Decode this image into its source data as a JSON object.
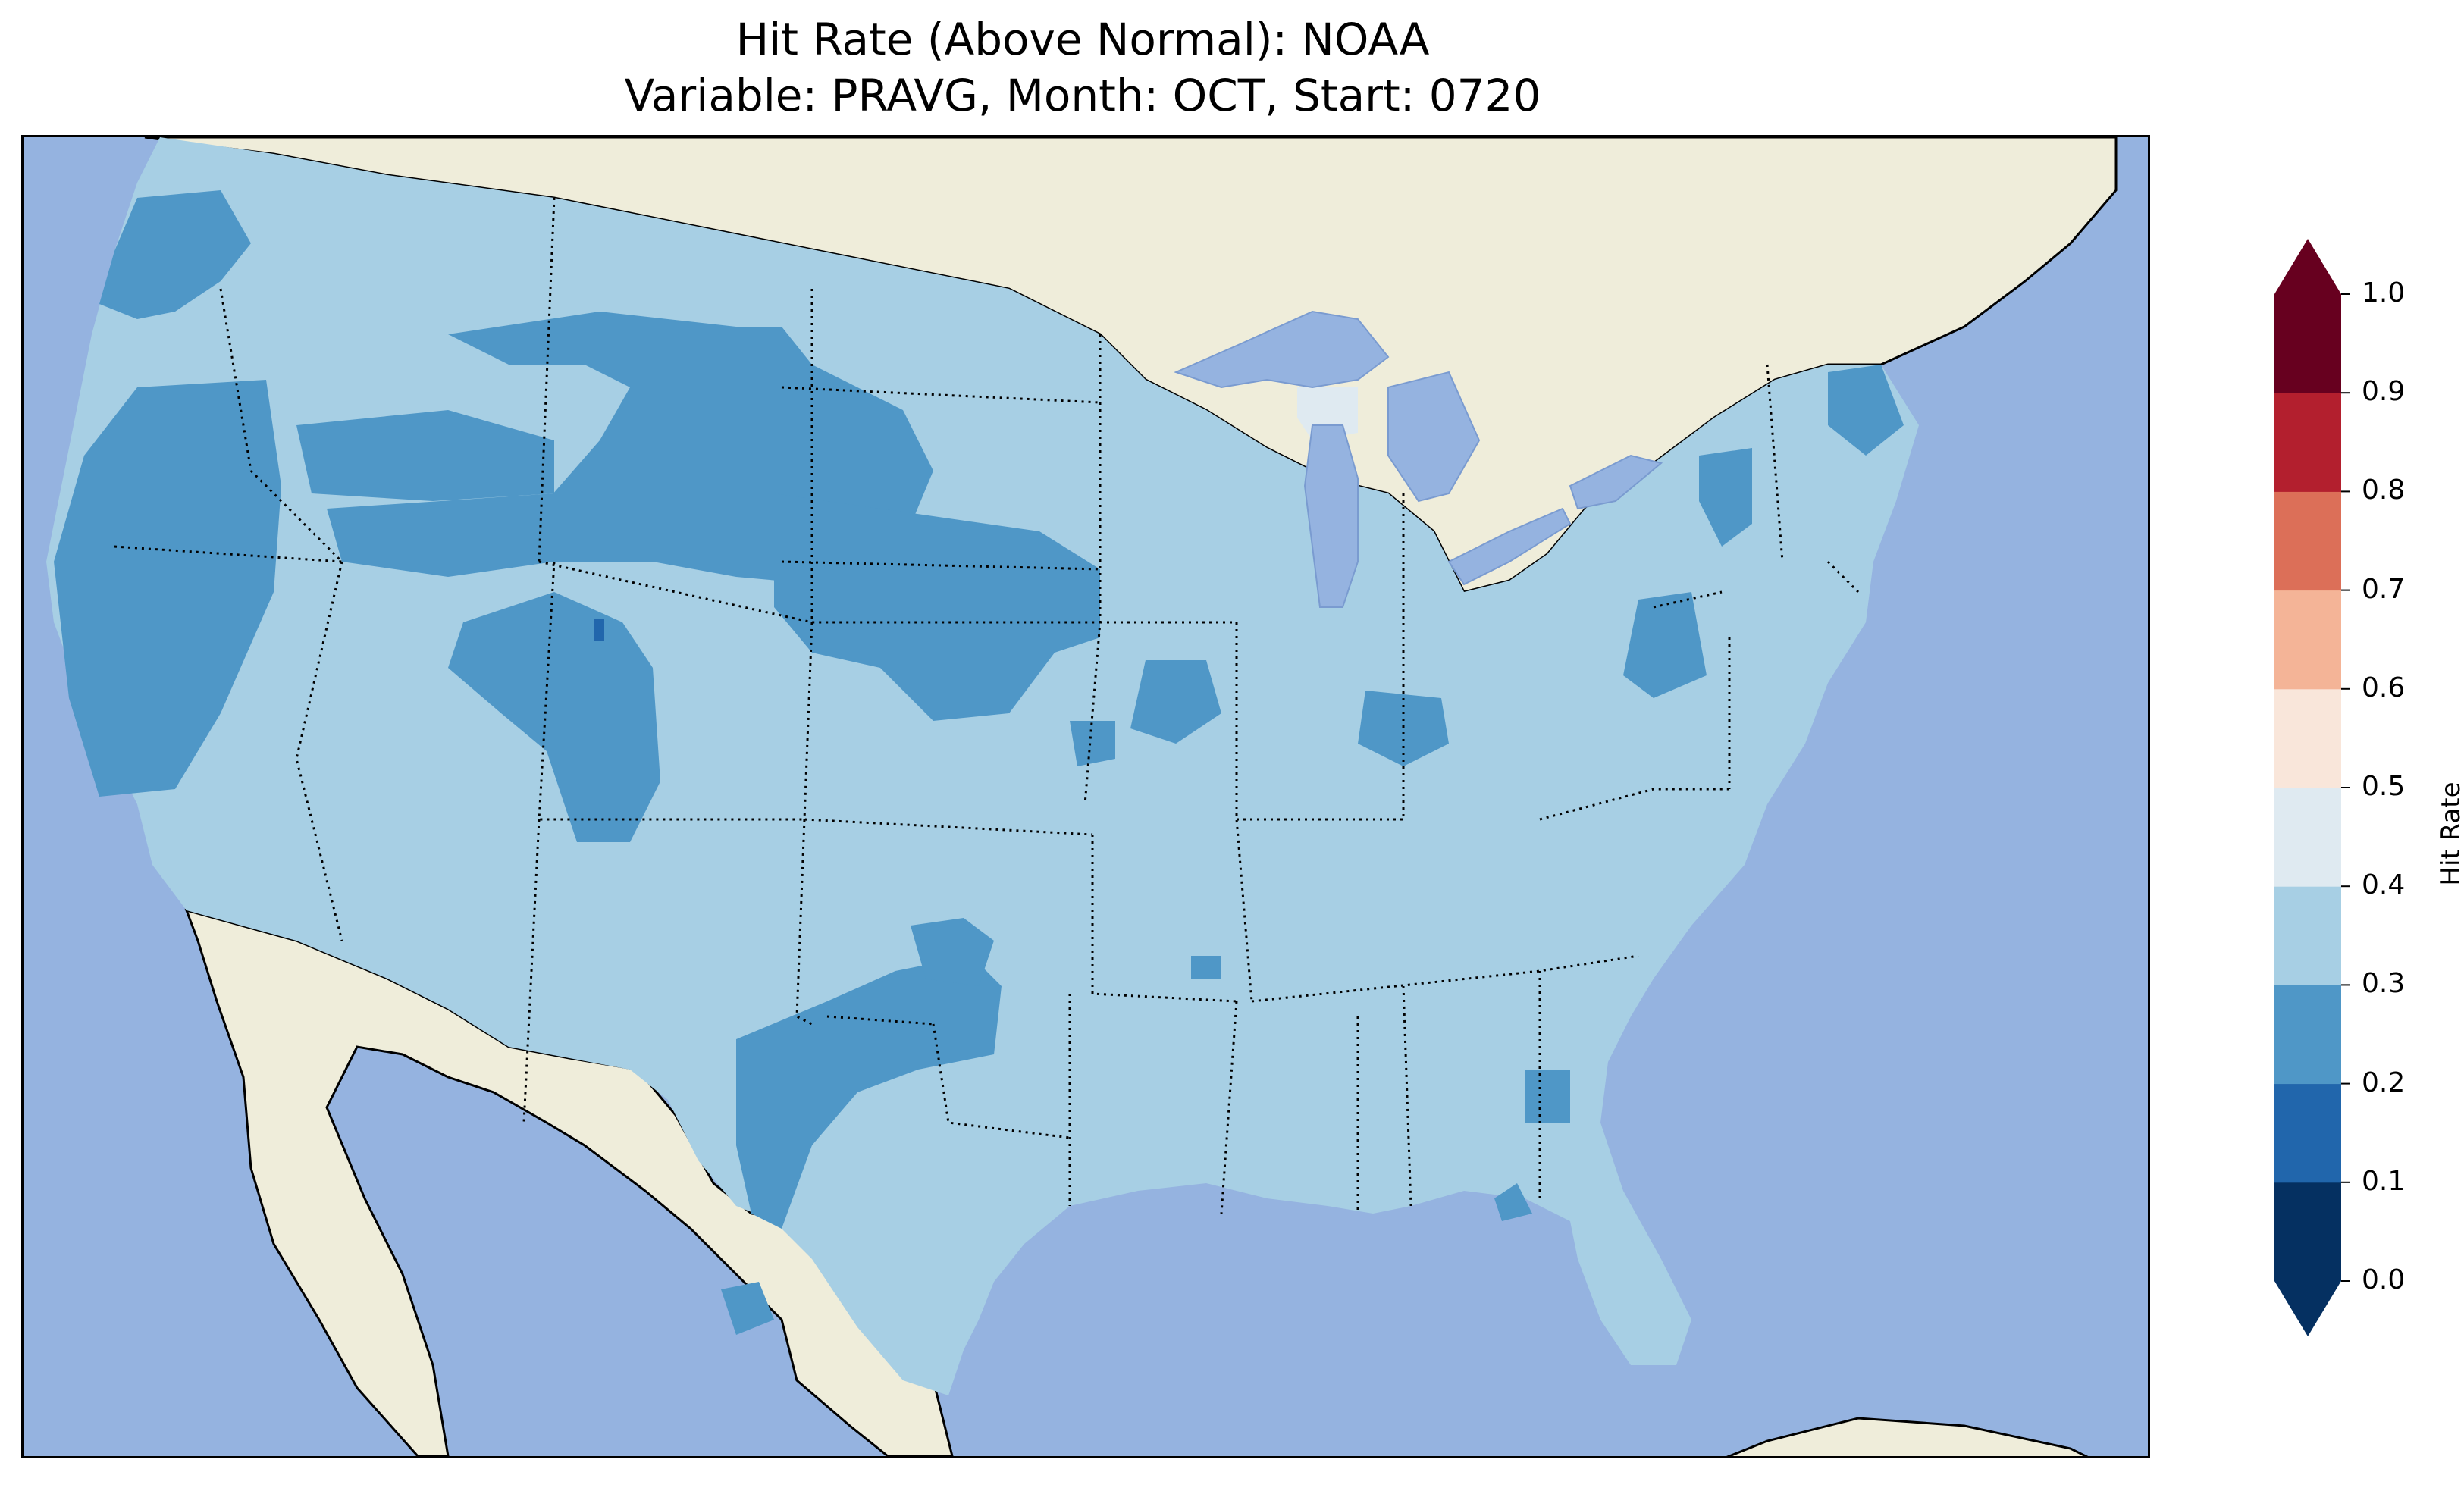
{
  "title": {
    "line1": "Hit Rate (Above Normal): NOAA",
    "line2": "Variable: PRAVG, Month: OCT, Start: 0720"
  },
  "colors": {
    "ocean": "#95b3e0",
    "land": "#efedda",
    "border": "#000000"
  },
  "legend": {
    "label": "Hit Rate",
    "levels": [
      {
        "from": 0.0,
        "to": 0.1,
        "color": "#053061"
      },
      {
        "from": 0.1,
        "to": 0.2,
        "color": "#2166ac"
      },
      {
        "from": 0.2,
        "to": 0.3,
        "color": "#4f97c7"
      },
      {
        "from": 0.3,
        "to": 0.4,
        "color": "#a7cfe4"
      },
      {
        "from": 0.4,
        "to": 0.5,
        "color": "#dfeaf1"
      },
      {
        "from": 0.5,
        "to": 0.6,
        "color": "#f9e6da"
      },
      {
        "from": 0.6,
        "to": 0.7,
        "color": "#f4b497"
      },
      {
        "from": 0.7,
        "to": 0.8,
        "color": "#dc6f58"
      },
      {
        "from": 0.8,
        "to": 0.9,
        "color": "#b31f2e"
      },
      {
        "from": 0.9,
        "to": 1.0,
        "color": "#67001f"
      }
    ],
    "ticks": [
      "0.0",
      "0.1",
      "0.2",
      "0.3",
      "0.4",
      "0.5",
      "0.6",
      "0.7",
      "0.8",
      "0.9",
      "1.0"
    ],
    "extend": "both"
  },
  "chart_data": {
    "type": "heatmap",
    "map_extent": "Contiguous United States",
    "background_level": "0.3–0.4 across most of the country",
    "regions": [
      {
        "area": "Pacific Northwest / northern California coast",
        "range": "0.2–0.3"
      },
      {
        "area": "Northern Rockies / Montana / Wyoming",
        "range": "0.2–0.3"
      },
      {
        "area": "Dakotas / Nebraska",
        "range": "0.2–0.3"
      },
      {
        "area": "Utah / western Colorado",
        "range": "0.2–0.3"
      },
      {
        "area": "New Mexico / west Texas / Oklahoma panhandle",
        "range": "0.2–0.3"
      },
      {
        "area": "Iowa / Illinois / Indiana patches",
        "range": "0.2–0.3"
      },
      {
        "area": "Pennsylvania, New York, Maine patches",
        "range": "0.2–0.3"
      },
      {
        "area": "Central Utah single cell",
        "range": "0.1–0.2"
      },
      {
        "area": "Northern Lake Michigan",
        "range": "0.4–0.5"
      }
    ]
  }
}
